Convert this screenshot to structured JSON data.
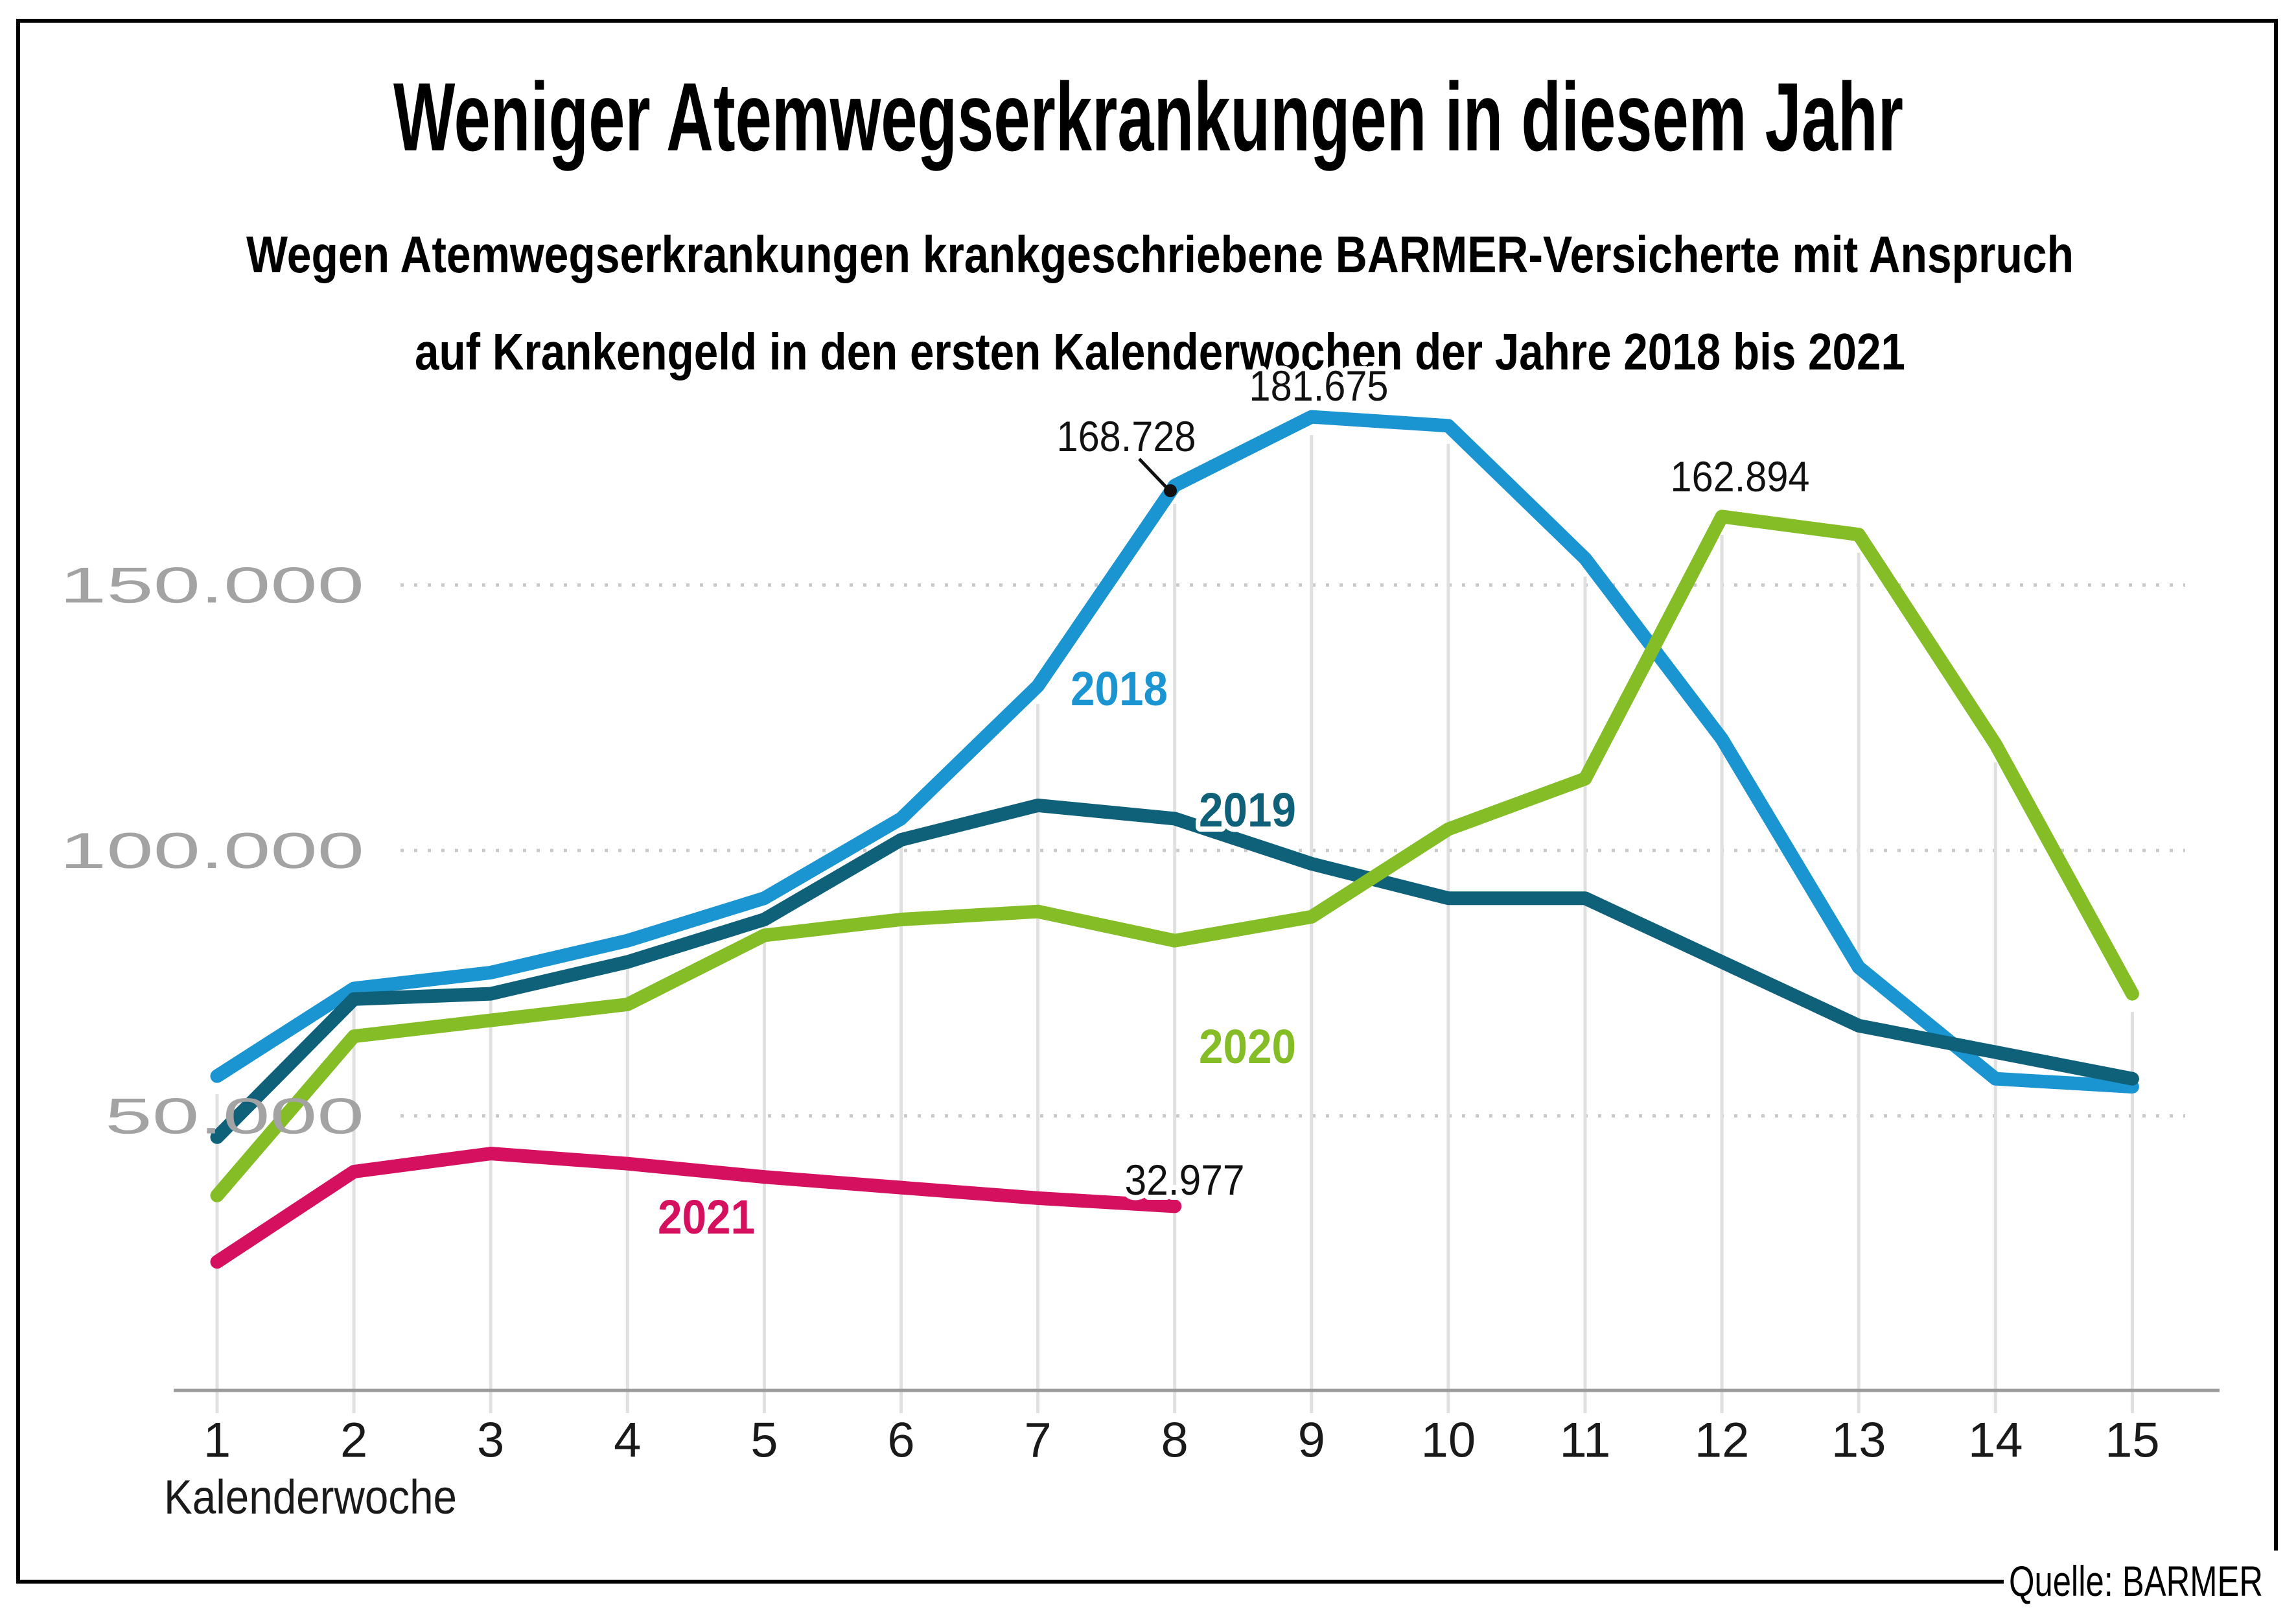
{
  "header": {
    "title": "Weniger Atemwegserkrankungen in diesem Jahr",
    "subtitle_line1": "Wegen Atemwegserkrankungen krankgeschriebene BARMER-Versicherte mit Anspruch",
    "subtitle_line2": "auf Krankengeld in den ersten Kalenderwochen der Jahre 2018 bis 2021"
  },
  "source": "Quelle: BARMER",
  "colors": {
    "series_2018": "#1b95d2",
    "series_2019": "#0f617a",
    "series_2020": "#85bd27",
    "series_2021": "#d5105f",
    "y_label_gray": "#a3a3a3",
    "x_label_black": "#1a1a1a",
    "dotted_grid": "#c9c9c9",
    "vertical_grid": "#e0e0e0",
    "axis_line": "#9b9b9b",
    "border_black": "#000000"
  },
  "chart_data": {
    "type": "line",
    "x": [
      1,
      2,
      3,
      4,
      5,
      6,
      7,
      8,
      9,
      10,
      11,
      12,
      13,
      14,
      15
    ],
    "xlabel": "Kalenderwoche",
    "ylabel": "",
    "ylim": [
      0,
      190000
    ],
    "grid": "horizontal-dotted-and-vertical",
    "legend_position": "inline-labels-on-lines",
    "y_gridlines": [
      50000,
      100000,
      150000
    ],
    "y_tick_labels": [
      {
        "value": 150000,
        "label": "150.000"
      },
      {
        "value": 100000,
        "label": "100.000"
      },
      {
        "value": 50000,
        "label": "50.000"
      }
    ],
    "x_tick_labels": [
      "1",
      "2",
      "3",
      "4",
      "5",
      "6",
      "7",
      "8",
      "9",
      "10",
      "11",
      "12",
      "13",
      "14",
      "15"
    ],
    "series": [
      {
        "name": "2018",
        "color": "#1b95d2",
        "values": [
          57500,
          74000,
          77000,
          83000,
          91000,
          106000,
          131000,
          168728,
          181675,
          180000,
          155000,
          121000,
          78000,
          57000,
          55500
        ]
      },
      {
        "name": "2019",
        "color": "#0f617a",
        "values": [
          46000,
          72000,
          73000,
          79000,
          87000,
          102000,
          108500,
          106000,
          97500,
          91000,
          91000,
          79000,
          67000,
          62000,
          57000
        ]
      },
      {
        "name": "2020",
        "color": "#85bd27",
        "values": [
          35000,
          65000,
          68000,
          71000,
          84000,
          87000,
          88500,
          83000,
          87500,
          104000,
          113500,
          162894,
          159500,
          120000,
          73000
        ]
      },
      {
        "name": "2021",
        "color": "#d5105f",
        "values": [
          22500,
          39500,
          42900,
          41000,
          38500,
          36500,
          34500,
          32977
        ]
      }
    ],
    "annotations": [
      {
        "text": "181.675",
        "series": "2018",
        "week": 9
      },
      {
        "text": "168.728",
        "series": "2018",
        "week": 8,
        "callout": true
      },
      {
        "text": "162.894",
        "series": "2020",
        "week": 12
      },
      {
        "text": "32.977",
        "series": "2021",
        "week": 8
      }
    ]
  }
}
